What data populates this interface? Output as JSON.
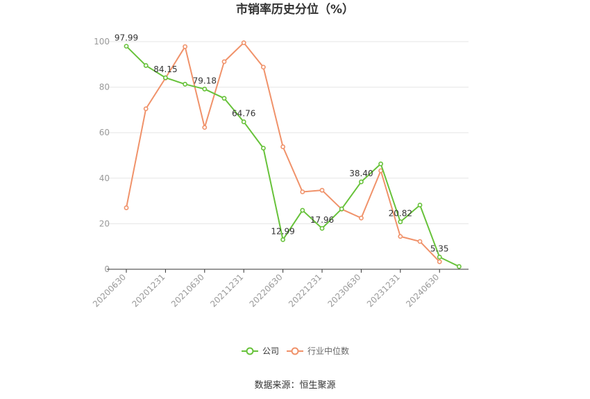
{
  "title": "市销率历史分位（%）",
  "source": "数据来源：恒生聚源",
  "colors": {
    "company": "#67c23a",
    "industry": "#f0926a",
    "grid": "#e6e6e6",
    "axis": "#333333"
  },
  "chart_data": {
    "type": "line",
    "title": "市销率历史分位（%）",
    "ylim": [
      0,
      100
    ],
    "yticks": [
      0,
      20,
      40,
      60,
      80,
      100
    ],
    "xtick_labels": [
      "20200630",
      "20201231",
      "20210630",
      "20211231",
      "20220630",
      "20221231",
      "20230630",
      "20231231",
      "20240630"
    ],
    "grid": true,
    "legend_position": "bottom-center",
    "series": [
      {
        "name": "公司",
        "color": "#67c23a",
        "values": [
          97.99,
          89.5,
          84.15,
          81.3,
          79.18,
          75.1,
          64.76,
          53.2,
          12.99,
          25.9,
          17.96,
          26.5,
          38.4,
          46.3,
          20.82,
          28.2,
          5.35,
          1.2
        ],
        "labels": {
          "0": "97.99",
          "2": "84.15",
          "4": "79.18",
          "6": "64.76",
          "8": "12.99",
          "10": "17.96",
          "12": "38.40",
          "14": "20.82",
          "16": "5.35"
        }
      },
      {
        "name": "行业中位数",
        "color": "#f0926a",
        "values": [
          27.0,
          70.5,
          84.0,
          97.8,
          62.3,
          91.2,
          99.5,
          88.8,
          53.8,
          34.0,
          34.7,
          26.4,
          22.5,
          43.3,
          14.4,
          12.2,
          3.3
        ]
      }
    ]
  }
}
